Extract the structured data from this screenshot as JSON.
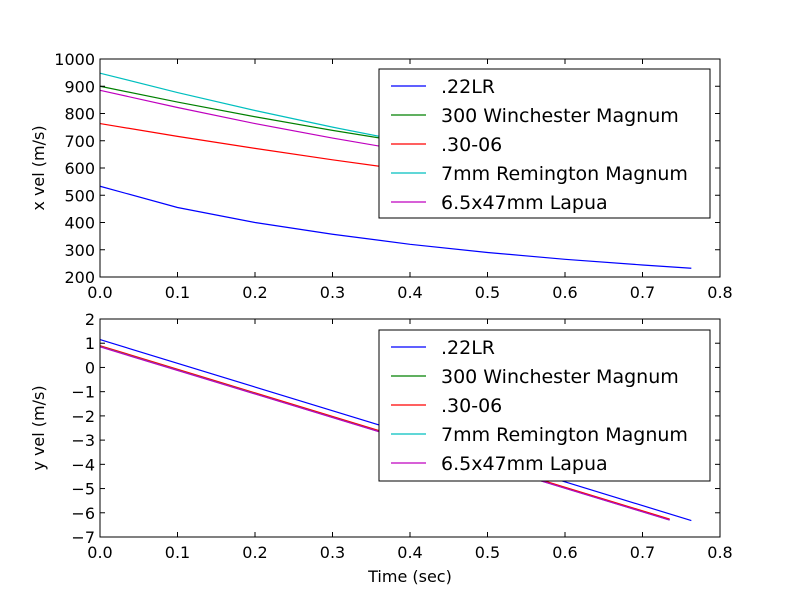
{
  "chart_data": [
    {
      "type": "line",
      "title": "",
      "xlabel": "",
      "ylabel": "x vel (m/s)",
      "xlim": [
        0,
        0.8
      ],
      "ylim": [
        200,
        1000
      ],
      "xticks": [
        "0.0",
        "0.1",
        "0.2",
        "0.3",
        "0.4",
        "0.5",
        "0.6",
        "0.7",
        "0.8"
      ],
      "yticks": [
        "200",
        "300",
        "400",
        "500",
        "600",
        "700",
        "800",
        "900",
        "1000"
      ],
      "grid": false,
      "legend_position": "top-right",
      "series": [
        {
          "name": ".22LR",
          "color": "#0000ff",
          "x": [
            0,
            0.1,
            0.2,
            0.3,
            0.4,
            0.5,
            0.6,
            0.7,
            0.763
          ],
          "y": [
            533,
            455,
            400,
            357,
            320,
            290,
            265,
            244,
            232
          ]
        },
        {
          "name": "300 Winchester Magnum",
          "color": "#008000",
          "x": [
            0,
            0.1,
            0.2,
            0.3,
            0.4,
            0.5,
            0.6,
            0.7,
            0.735
          ],
          "y": [
            900,
            842,
            788,
            738,
            692,
            648,
            606,
            568,
            555
          ]
        },
        {
          "name": ".30-06",
          "color": "#ff0000",
          "x": [
            0,
            0.1,
            0.2,
            0.3,
            0.4,
            0.5,
            0.6,
            0.7,
            0.735
          ],
          "y": [
            763,
            716,
            672,
            630,
            591,
            554,
            519,
            486,
            475
          ]
        },
        {
          "name": "7mm Remington Magnum",
          "color": "#00bfbf",
          "x": [
            0,
            0.1,
            0.2,
            0.3,
            0.4,
            0.5,
            0.6,
            0.7,
            0.735
          ],
          "y": [
            948,
            877,
            811,
            750,
            694,
            642,
            594,
            550,
            535
          ]
        },
        {
          "name": "6.5x47mm Lapua",
          "color": "#bf00bf",
          "x": [
            0,
            0.1,
            0.2,
            0.3,
            0.4,
            0.5,
            0.6,
            0.7,
            0.735
          ],
          "y": [
            885,
            822,
            763,
            710,
            661,
            615,
            573,
            534,
            521
          ]
        }
      ]
    },
    {
      "type": "line",
      "title": "",
      "xlabel": "Time (sec)",
      "ylabel": "y vel (m/s)",
      "xlim": [
        0,
        0.8
      ],
      "ylim": [
        -7,
        2
      ],
      "xticks": [
        "0.0",
        "0.1",
        "0.2",
        "0.3",
        "0.4",
        "0.5",
        "0.6",
        "0.7",
        "0.8"
      ],
      "yticks": [
        "−7",
        "−6",
        "−5",
        "−4",
        "−3",
        "−2",
        "−1",
        "0",
        "1",
        "2"
      ],
      "grid": false,
      "legend_position": "top-right",
      "series": [
        {
          "name": ".22LR",
          "color": "#0000ff",
          "x": [
            0,
            0.763
          ],
          "y": [
            1.15,
            -6.32
          ]
        },
        {
          "name": "300 Winchester Magnum",
          "color": "#008000",
          "x": [
            0,
            0.735
          ],
          "y": [
            0.88,
            -6.28
          ]
        },
        {
          "name": ".30-06",
          "color": "#ff0000",
          "x": [
            0,
            0.735
          ],
          "y": [
            0.9,
            -6.26
          ]
        },
        {
          "name": "7mm Remington Magnum",
          "color": "#00bfbf",
          "x": [
            0,
            0.735
          ],
          "y": [
            0.86,
            -6.3
          ]
        },
        {
          "name": "6.5x47mm Lapua",
          "color": "#bf00bf",
          "x": [
            0,
            0.735
          ],
          "y": [
            0.85,
            -6.3
          ]
        }
      ]
    }
  ]
}
